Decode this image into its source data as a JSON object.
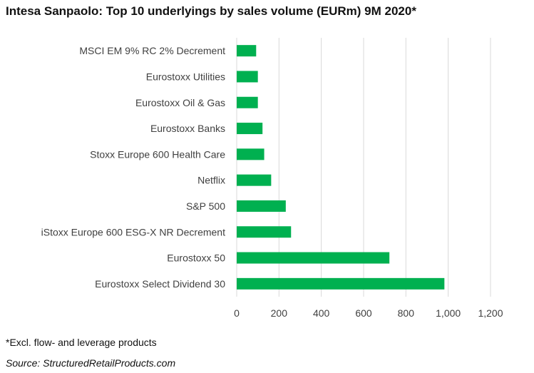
{
  "title": "Intesa Sanpaolo: Top 10 underlyings by sales volume (EURm) 9M 2020*",
  "footnote": "*Excl. flow- and leverage products",
  "source": "Source: StructuredRetailProducts.com",
  "chart_data": {
    "type": "bar",
    "orientation": "horizontal",
    "categories": [
      "MSCI EM 9% RC 2% Decrement",
      "Eurostoxx Utilities",
      "Eurostoxx Oil & Gas",
      "Eurostoxx Banks",
      "Stoxx Europe 600 Health Care",
      "Netflix",
      "S&P 500",
      "iStoxx Europe 600 ESG-X NR Decrement",
      "Eurostoxx 50",
      "Eurostoxx Select Dividend 30"
    ],
    "values": [
      92,
      100,
      100,
      122,
      130,
      163,
      232,
      257,
      722,
      982
    ],
    "xlim": [
      0,
      1200
    ],
    "xticks": [
      0,
      200,
      400,
      600,
      800,
      1000,
      1200
    ],
    "xtick_labels": [
      "0",
      "200",
      "400",
      "600",
      "800",
      "1,000",
      "1,200"
    ],
    "bar_color": "#00B050",
    "grid": true,
    "grid_color": "#D9D9D9",
    "legend": "none"
  }
}
